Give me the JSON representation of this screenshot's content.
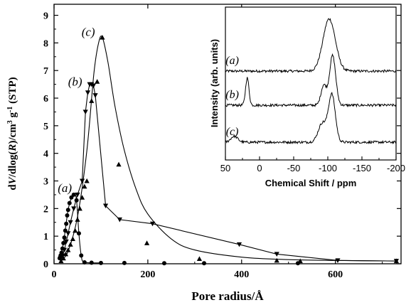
{
  "chart_data": [
    {
      "type": "scatter",
      "title": "",
      "xlabel": "Pore radius/Å",
      "ylabel_parts": [
        "d",
        "V",
        "/dlog(",
        "R",
        ")/cm",
        "3",
        " g",
        "-1",
        " (STP)"
      ],
      "xlim": [
        0,
        740
      ],
      "ylim": [
        0,
        9.4
      ],
      "x_ticks": [
        0,
        200,
        400,
        600
      ],
      "y_ticks": [
        0,
        1,
        2,
        3,
        4,
        5,
        6,
        7,
        8,
        9
      ],
      "grid": false,
      "series": [
        {
          "name": "(a)",
          "marker": "circle",
          "points": [
            [
              12,
              0.2
            ],
            [
              14,
              0.3
            ],
            [
              16,
              0.4
            ],
            [
              18,
              0.55
            ],
            [
              20,
              0.75
            ],
            [
              22,
              0.95
            ],
            [
              24,
              1.2
            ],
            [
              26,
              1.45
            ],
            [
              28,
              1.75
            ],
            [
              30,
              1.95
            ],
            [
              33,
              2.2
            ],
            [
              37,
              2.4
            ],
            [
              42,
              2.5
            ],
            [
              48,
              2.3
            ],
            [
              53,
              1.1
            ],
            [
              58,
              0.3
            ],
            [
              65,
              0.05
            ],
            [
              80,
              0.04
            ],
            [
              100,
              0.03
            ],
            [
              150,
              0.03
            ],
            [
              235,
              0.02
            ],
            [
              320,
              0.02
            ],
            [
              520,
              0.02
            ]
          ]
        },
        {
          "name": "(b)",
          "marker": "triangle-down",
          "points": [
            [
              14,
              0.2
            ],
            [
              18,
              0.3
            ],
            [
              22,
              0.5
            ],
            [
              26,
              0.8
            ],
            [
              30,
              1.1
            ],
            [
              35,
              1.5
            ],
            [
              42,
              2.0
            ],
            [
              50,
              2.5
            ],
            [
              60,
              3.0
            ],
            [
              67,
              5.5
            ],
            [
              72,
              6.2
            ],
            [
              76,
              6.5
            ],
            [
              80,
              6.5
            ],
            [
              84,
              6.45
            ],
            [
              88,
              6.1
            ],
            [
              110,
              2.1
            ],
            [
              140,
              1.6
            ],
            [
              210,
              1.45
            ],
            [
              395,
              0.7
            ],
            [
              475,
              0.35
            ],
            [
              605,
              0.12
            ],
            [
              730,
              0.1
            ]
          ]
        },
        {
          "name": "(c)",
          "marker": "triangle-up",
          "points": [
            [
              15,
              0.1
            ],
            [
              20,
              0.2
            ],
            [
              25,
              0.35
            ],
            [
              30,
              0.5
            ],
            [
              35,
              0.7
            ],
            [
              40,
              0.9
            ],
            [
              45,
              1.2
            ],
            [
              50,
              1.6
            ],
            [
              55,
              2.0
            ],
            [
              60,
              2.4
            ],
            [
              65,
              2.8
            ],
            [
              70,
              3.0
            ],
            [
              80,
              5.9
            ],
            [
              92,
              6.6
            ],
            [
              103,
              8.2
            ],
            [
              138,
              3.6
            ],
            [
              198,
              0.75
            ],
            [
              310,
              0.18
            ],
            [
              475,
              0.12
            ],
            [
              525,
              0.1
            ],
            [
              730,
              0.1
            ]
          ]
        }
      ],
      "curves": [
        {
          "series": "(c)",
          "points": [
            [
              15,
              0.12
            ],
            [
              30,
              0.45
            ],
            [
              50,
              1.7
            ],
            [
              70,
              4.1
            ],
            [
              85,
              6.9
            ],
            [
              95,
              8.0
            ],
            [
              103,
              8.2
            ],
            [
              115,
              7.3
            ],
            [
              130,
              5.7
            ],
            [
              150,
              4.1
            ],
            [
              175,
              2.7
            ],
            [
              200,
              1.8
            ],
            [
              250,
              0.9
            ],
            [
              300,
              0.5
            ],
            [
              400,
              0.24
            ],
            [
              500,
              0.15
            ],
            [
              600,
              0.12
            ],
            [
              730,
              0.1
            ]
          ]
        },
        {
          "series": "(a)",
          "points": [
            [
              12,
              0.2
            ],
            [
              20,
              0.75
            ],
            [
              30,
              1.95
            ],
            [
              38,
              2.42
            ],
            [
              44,
              2.5
            ],
            [
              48,
              2.3
            ],
            [
              53,
              1.1
            ],
            [
              58,
              0.3
            ],
            [
              65,
              0.06
            ],
            [
              100,
              0.03
            ]
          ]
        }
      ],
      "annotations": [
        {
          "text": "(a)",
          "x": 23,
          "y": 2.6
        },
        {
          "text": "(b)",
          "x": 45,
          "y": 6.45
        },
        {
          "text": "(c)",
          "x": 73,
          "y": 8.25
        }
      ]
    },
    {
      "type": "line",
      "title": "",
      "xlabel": "Chemical Shift / ppm",
      "ylabel": "Intensity (arb. units)",
      "xlim": [
        50,
        -200
      ],
      "x_ticks": [
        50,
        0,
        -50,
        -100,
        -150,
        -200
      ],
      "grid": false,
      "series": [
        {
          "name": "(a)",
          "baseline": 2.0,
          "peaks": [
            {
              "center": -102,
              "width": 9,
              "height": 1.05
            }
          ]
        },
        {
          "name": "(b)",
          "baseline": 1.0,
          "peaks": [
            {
              "center": 18,
              "width": 2.5,
              "height": 0.55
            },
            {
              "center": -94,
              "width": 4,
              "height": 0.4
            },
            {
              "center": -107,
              "width": 4.5,
              "height": 1.0
            }
          ]
        },
        {
          "name": "(c)",
          "baseline": 0.0,
          "peaks": [
            {
              "center": 37,
              "width": 5,
              "height": 0.12
            },
            {
              "center": -92,
              "width": 6,
              "height": 0.38
            },
            {
              "center": -106,
              "width": 5,
              "height": 0.95
            }
          ]
        }
      ],
      "annotations": [
        {
          "text": "(a)",
          "x": 40,
          "y": 2.15
        },
        {
          "text": "(b)",
          "x": 40,
          "y": 1.15
        },
        {
          "text": "(c)",
          "x": 40,
          "y": 0.15
        }
      ]
    }
  ]
}
